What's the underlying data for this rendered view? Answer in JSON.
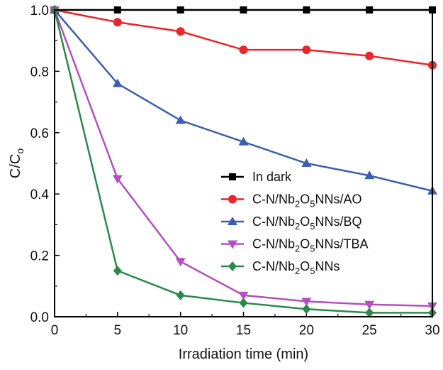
{
  "chart_data": {
    "type": "line",
    "xlabel": "Irradiation time (min)",
    "ylabel": "C/C",
    "ylabel_sub": "o",
    "xlim": [
      0,
      30
    ],
    "ylim": [
      0,
      1.0
    ],
    "xticks": [
      0,
      5,
      10,
      15,
      20,
      25,
      30
    ],
    "yticks": [
      0.0,
      0.2,
      0.4,
      0.6,
      0.8,
      1.0
    ],
    "x": [
      0,
      5,
      10,
      15,
      20,
      25,
      30
    ],
    "grid": false,
    "legend_position": "center-right",
    "series": [
      {
        "name": "In dark",
        "name_parts": [
          [
            "In dark",
            ""
          ]
        ],
        "values": [
          1.0,
          1.0,
          1.0,
          1.0,
          1.0,
          1.0,
          1.0
        ],
        "color": "#000000",
        "marker": "square"
      },
      {
        "name": "C-N/Nb2O5NNs/AO",
        "name_parts": [
          [
            "C-N/Nb",
            ""
          ],
          [
            "2",
            "sub"
          ],
          [
            "O",
            ""
          ],
          [
            "5",
            "sub"
          ],
          [
            "NNs/AO",
            ""
          ]
        ],
        "values": [
          1.0,
          0.96,
          0.93,
          0.87,
          0.87,
          0.85,
          0.82
        ],
        "color": "#e8262b",
        "marker": "circle"
      },
      {
        "name": "C-N/Nb2O5NNs/BQ",
        "name_parts": [
          [
            "C-N/Nb",
            ""
          ],
          [
            "2",
            "sub"
          ],
          [
            "O",
            ""
          ],
          [
            "5",
            "sub"
          ],
          [
            "NNs/BQ",
            ""
          ]
        ],
        "values": [
          1.0,
          0.76,
          0.64,
          0.57,
          0.5,
          0.46,
          0.41
        ],
        "color": "#3c5fad",
        "marker": "triangle-up"
      },
      {
        "name": "C-N/Nb2O5NNs/TBA",
        "name_parts": [
          [
            "C-N/Nb",
            ""
          ],
          [
            "2",
            "sub"
          ],
          [
            "O",
            ""
          ],
          [
            "5",
            "sub"
          ],
          [
            "NNs/TBA",
            ""
          ]
        ],
        "values": [
          1.0,
          0.45,
          0.18,
          0.07,
          0.05,
          0.04,
          0.035
        ],
        "color": "#b44fc0",
        "marker": "triangle-down"
      },
      {
        "name": "C-N/Nb2O5NNs",
        "name_parts": [
          [
            "C-N/Nb",
            ""
          ],
          [
            "2",
            "sub"
          ],
          [
            "O",
            ""
          ],
          [
            "5",
            "sub"
          ],
          [
            "NNs",
            ""
          ]
        ],
        "values": [
          1.0,
          0.15,
          0.07,
          0.045,
          0.025,
          0.013,
          0.013
        ],
        "color": "#2a8a4a",
        "marker": "diamond"
      }
    ]
  }
}
